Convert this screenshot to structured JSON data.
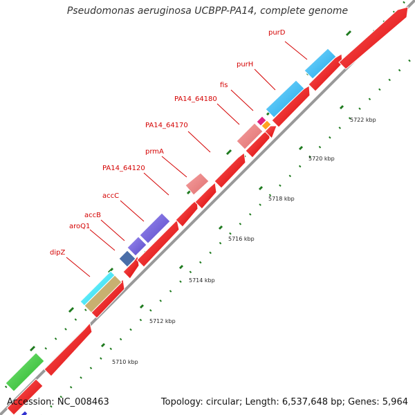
{
  "title": "Pseudomonas aeruginosa UCBPP-PA14, complete genome",
  "accession_text": "Accession: NC_008463",
  "summary_text": "Topology: circular; Length: 6,537,648 bp; Genes: 5,964",
  "colors": {
    "cds": "#ff0000",
    "genome_line": "#999999",
    "tick": "#1e7a1e"
  },
  "tick_labels": [
    "5710 kbp",
    "5712 kbp",
    "5714 kbp",
    "5716 kbp",
    "5718 kbp",
    "5720 kbp",
    "5722 kbp"
  ],
  "gene_labels": [
    "purD",
    "purH",
    "fis",
    "PA14_64180",
    "PA14_64170",
    "prmA",
    "PA14_64120",
    "accC",
    "accB",
    "aroQ1",
    "dipZ"
  ]
}
